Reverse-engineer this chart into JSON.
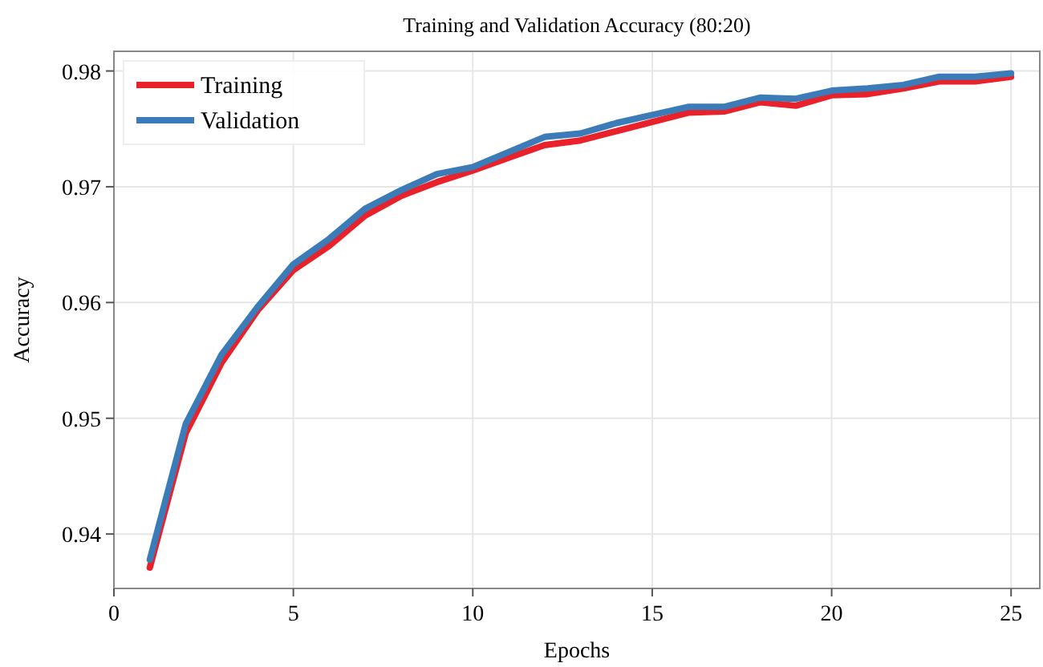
{
  "chart_data": {
    "type": "line",
    "title": "Training and Validation Accuracy (80:20)",
    "xlabel": "Epochs",
    "ylabel": "Accuracy",
    "x": [
      1,
      2,
      3,
      4,
      5,
      6,
      7,
      8,
      9,
      10,
      11,
      12,
      13,
      14,
      15,
      16,
      17,
      18,
      19,
      20,
      21,
      22,
      23,
      24,
      25
    ],
    "series": [
      {
        "name": "Training",
        "color": "#e8212a",
        "values": [
          0.9371,
          0.9487,
          0.9548,
          0.9593,
          0.9628,
          0.9649,
          0.9675,
          0.9692,
          0.9704,
          0.9714,
          0.9725,
          0.9736,
          0.974,
          0.9748,
          0.9756,
          0.9764,
          0.9765,
          0.9773,
          0.977,
          0.9779,
          0.978,
          0.9785,
          0.9791,
          0.9791,
          0.9795
        ]
      },
      {
        "name": "Validation",
        "color": "#3a7bb8",
        "values": [
          0.9378,
          0.9495,
          0.9555,
          0.9596,
          0.9633,
          0.9655,
          0.9681,
          0.9697,
          0.9711,
          0.9717,
          0.973,
          0.9743,
          0.9746,
          0.9755,
          0.9762,
          0.9769,
          0.9769,
          0.9777,
          0.9776,
          0.9783,
          0.9785,
          0.9788,
          0.9795,
          0.9795,
          0.9798
        ]
      }
    ],
    "xlim": [
      0,
      25.8
    ],
    "ylim": [
      0.9353,
      0.9817
    ],
    "xticks": [
      0,
      5,
      10,
      15,
      20,
      25
    ],
    "yticks": [
      0.94,
      0.95,
      0.96,
      0.97,
      0.98
    ],
    "grid": true,
    "legend": "top left",
    "marker": "none",
    "line_style": "solid"
  }
}
